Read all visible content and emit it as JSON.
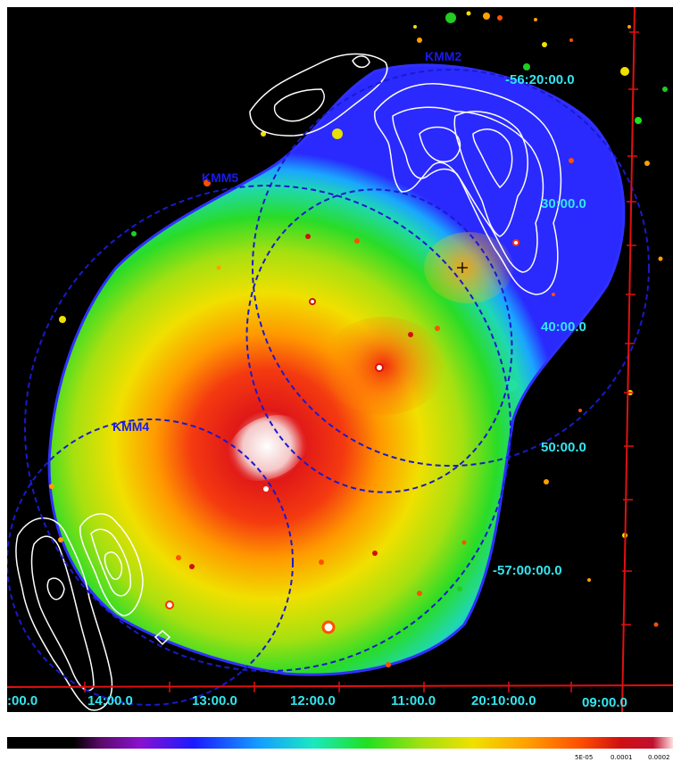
{
  "image": {
    "subject": "X-ray intensity map with radio contours",
    "colormap": [
      "#5a0a6a",
      "#7a10c0",
      "#1a1aff",
      "#14a0ff",
      "#1ae8c0",
      "#20e020",
      "#a0e010",
      "#f0e000",
      "#ffa000",
      "#ff5000",
      "#f01010",
      "#c00010",
      "#ffe0e0"
    ],
    "background": "#000000",
    "contour_color": "#ffffff",
    "circle_color": "#1a1acc",
    "grid_color": "#e01010"
  },
  "regions": [
    {
      "id": "kmm2",
      "label": "KMM2"
    },
    {
      "id": "kmm5",
      "label": "KMM5"
    },
    {
      "id": "kmm4",
      "label": "KMM4"
    }
  ],
  "dec_labels": [
    "-56:20:00.0",
    "30:00.0",
    "40:00.0",
    "50:00.0",
    "-57:00:00.0"
  ],
  "ra_labels": [
    ":00.0",
    "14:00.0",
    "13:00.0",
    "12:00.0",
    "11:00.0",
    "20:10:00.0",
    "09:00.0"
  ],
  "colorbar": {
    "tick_labels": [
      "5E-05",
      "0.0001",
      "0.0002"
    ]
  }
}
